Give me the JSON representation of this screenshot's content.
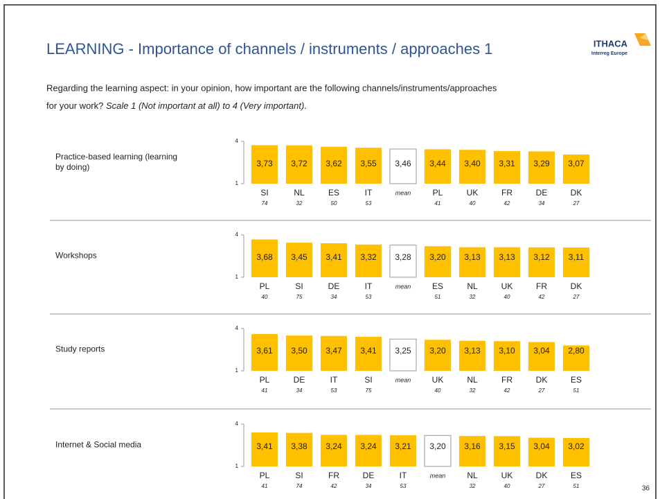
{
  "title": "LEARNING - Importance of channels / instruments / approaches 1",
  "subtitle": {
    "line1": "Regarding the learning aspect: in your opinion, how important are the following channels/instruments/approaches",
    "line2": "for your work? ",
    "scale": "Scale 1 (Not important at all) to 4 (Very important)",
    "end": "."
  },
  "logo": {
    "name": "ITHACA",
    "sub": "Interreg Europe"
  },
  "page_number": "36",
  "chart_data": [
    {
      "type": "bar",
      "row_label": [
        "Practice-based learning (learning",
        "by doing)"
      ],
      "categories": [
        "SI",
        "NL",
        "ES",
        "IT",
        "mean",
        "PL",
        "UK",
        "FR",
        "DE",
        "DK"
      ],
      "values": [
        3.73,
        3.72,
        3.62,
        3.55,
        3.46,
        3.44,
        3.4,
        3.31,
        3.29,
        3.07
      ],
      "value_labels": [
        "3,73",
        "3,72",
        "3,62",
        "3,55",
        "3,46",
        "3,44",
        "3,40",
        "3,31",
        "3,29",
        "3,07"
      ],
      "sample_sizes": [
        74,
        32,
        50,
        53,
        null,
        41,
        40,
        42,
        34,
        27
      ],
      "colors": [
        "#ffc000",
        "#ffc000",
        "#ffc000",
        "#ffc000",
        "#ffffff",
        "#ffc000",
        "#ffc000",
        "#ffc000",
        "#ffc000",
        "#ffc000"
      ],
      "ylim": [
        1,
        4
      ],
      "yticks": [
        1,
        4
      ]
    },
    {
      "type": "bar",
      "row_label": [
        "Workshops"
      ],
      "categories": [
        "PL",
        "SI",
        "DE",
        "IT",
        "mean",
        "ES",
        "NL",
        "UK",
        "FR",
        "DK"
      ],
      "values": [
        3.68,
        3.45,
        3.41,
        3.32,
        3.28,
        3.2,
        3.13,
        3.13,
        3.12,
        3.11
      ],
      "value_labels": [
        "3,68",
        "3,45",
        "3,41",
        "3,32",
        "3,28",
        "3,20",
        "3,13",
        "3,13",
        "3,12",
        "3,11"
      ],
      "sample_sizes": [
        40,
        75,
        34,
        53,
        null,
        51,
        32,
        40,
        42,
        27
      ],
      "colors": [
        "#ffc000",
        "#ffc000",
        "#ffc000",
        "#ffc000",
        "#ffffff",
        "#ffc000",
        "#ffc000",
        "#ffc000",
        "#ffc000",
        "#ffc000"
      ],
      "ylim": [
        1,
        4
      ],
      "yticks": [
        1,
        4
      ]
    },
    {
      "type": "bar",
      "row_label": [
        "Study reports"
      ],
      "categories": [
        "PL",
        "DE",
        "IT",
        "SI",
        "mean",
        "UK",
        "NL",
        "FR",
        "DK",
        "ES"
      ],
      "values": [
        3.61,
        3.5,
        3.47,
        3.41,
        3.25,
        3.2,
        3.13,
        3.1,
        3.04,
        2.8
      ],
      "value_labels": [
        "3,61",
        "3,50",
        "3,47",
        "3,41",
        "3,25",
        "3,20",
        "3,13",
        "3,10",
        "3,04",
        "2,80"
      ],
      "sample_sizes": [
        41,
        34,
        53,
        75,
        null,
        40,
        32,
        42,
        27,
        51
      ],
      "colors": [
        "#ffc000",
        "#ffc000",
        "#ffc000",
        "#ffc000",
        "#ffffff",
        "#ffc000",
        "#ffc000",
        "#ffc000",
        "#ffc000",
        "#ffc000"
      ],
      "ylim": [
        1,
        4
      ],
      "yticks": [
        1,
        4
      ]
    },
    {
      "type": "bar",
      "row_label": [
        "Internet & Social media"
      ],
      "categories": [
        "PL",
        "SI",
        "FR",
        "DE",
        "IT",
        "mean",
        "NL",
        "UK",
        "DK",
        "ES"
      ],
      "values": [
        3.41,
        3.38,
        3.24,
        3.24,
        3.21,
        3.2,
        3.16,
        3.15,
        3.04,
        3.02
      ],
      "value_labels": [
        "3,41",
        "3,38",
        "3,24",
        "3,24",
        "3,21",
        "3,20",
        "3,16",
        "3,15",
        "3,04",
        "3,02"
      ],
      "sample_sizes": [
        41,
        74,
        42,
        34,
        53,
        null,
        32,
        40,
        27,
        51
      ],
      "colors": [
        "#ffc000",
        "#ffc000",
        "#ffc000",
        "#ffc000",
        "#ffc000",
        "#ffffff",
        "#ffc000",
        "#ffc000",
        "#ffc000",
        "#ffc000"
      ],
      "ylim": [
        1,
        4
      ],
      "yticks": [
        1,
        4
      ]
    }
  ]
}
